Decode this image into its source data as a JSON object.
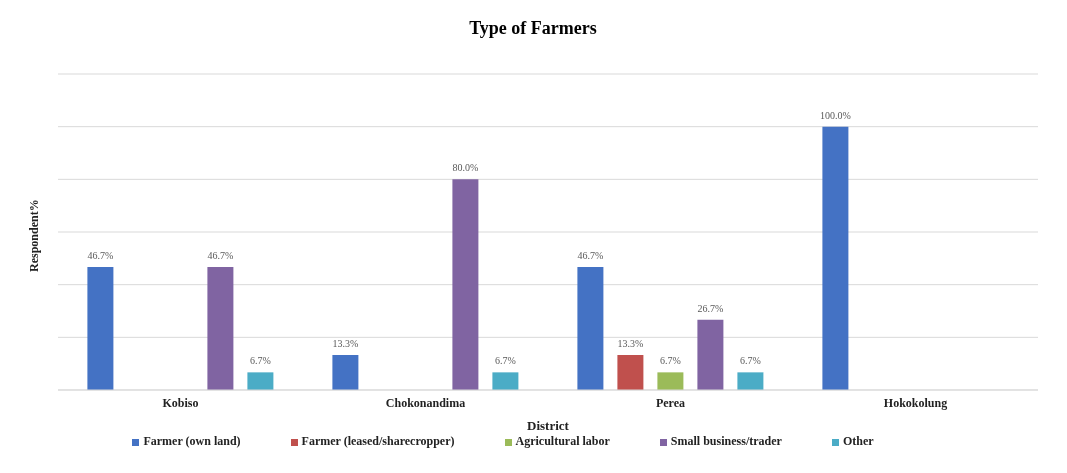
{
  "chart_data": {
    "type": "bar",
    "title": "Type of Farmers",
    "xlabel": "District",
    "ylabel": "Respondent%",
    "categories": [
      "Kobiso",
      "Chokonandima",
      "Perea",
      "Hokokolung"
    ],
    "series": [
      {
        "name": "Farmer (own land)",
        "color": "#4472c4",
        "values": [
          46.7,
          13.3,
          46.7,
          100.0
        ],
        "value_labels": [
          "46.7%",
          "13.3%",
          "46.7%",
          "100.0%"
        ]
      },
      {
        "name": "Farmer (leased/sharecropper)",
        "color": "#c0504d",
        "values": [
          null,
          null,
          13.3,
          null
        ],
        "value_labels": [
          null,
          null,
          "13.3%",
          null
        ]
      },
      {
        "name": "Agricultural labor",
        "color": "#9bbb59",
        "values": [
          null,
          null,
          6.7,
          null
        ],
        "value_labels": [
          null,
          null,
          "6.7%",
          null
        ]
      },
      {
        "name": "Small business/trader",
        "color": "#8064a2",
        "values": [
          46.7,
          80.0,
          26.7,
          null
        ],
        "value_labels": [
          "46.7%",
          "80.0%",
          "26.7%",
          null
        ]
      },
      {
        "name": "Other",
        "color": "#4bacc6",
        "values": [
          6.7,
          6.7,
          6.7,
          null
        ],
        "value_labels": [
          "6.7%",
          "6.7%",
          "6.7%",
          null
        ]
      }
    ],
    "tick_labels": "x",
    "grid": "y",
    "legend": "bottom"
  }
}
